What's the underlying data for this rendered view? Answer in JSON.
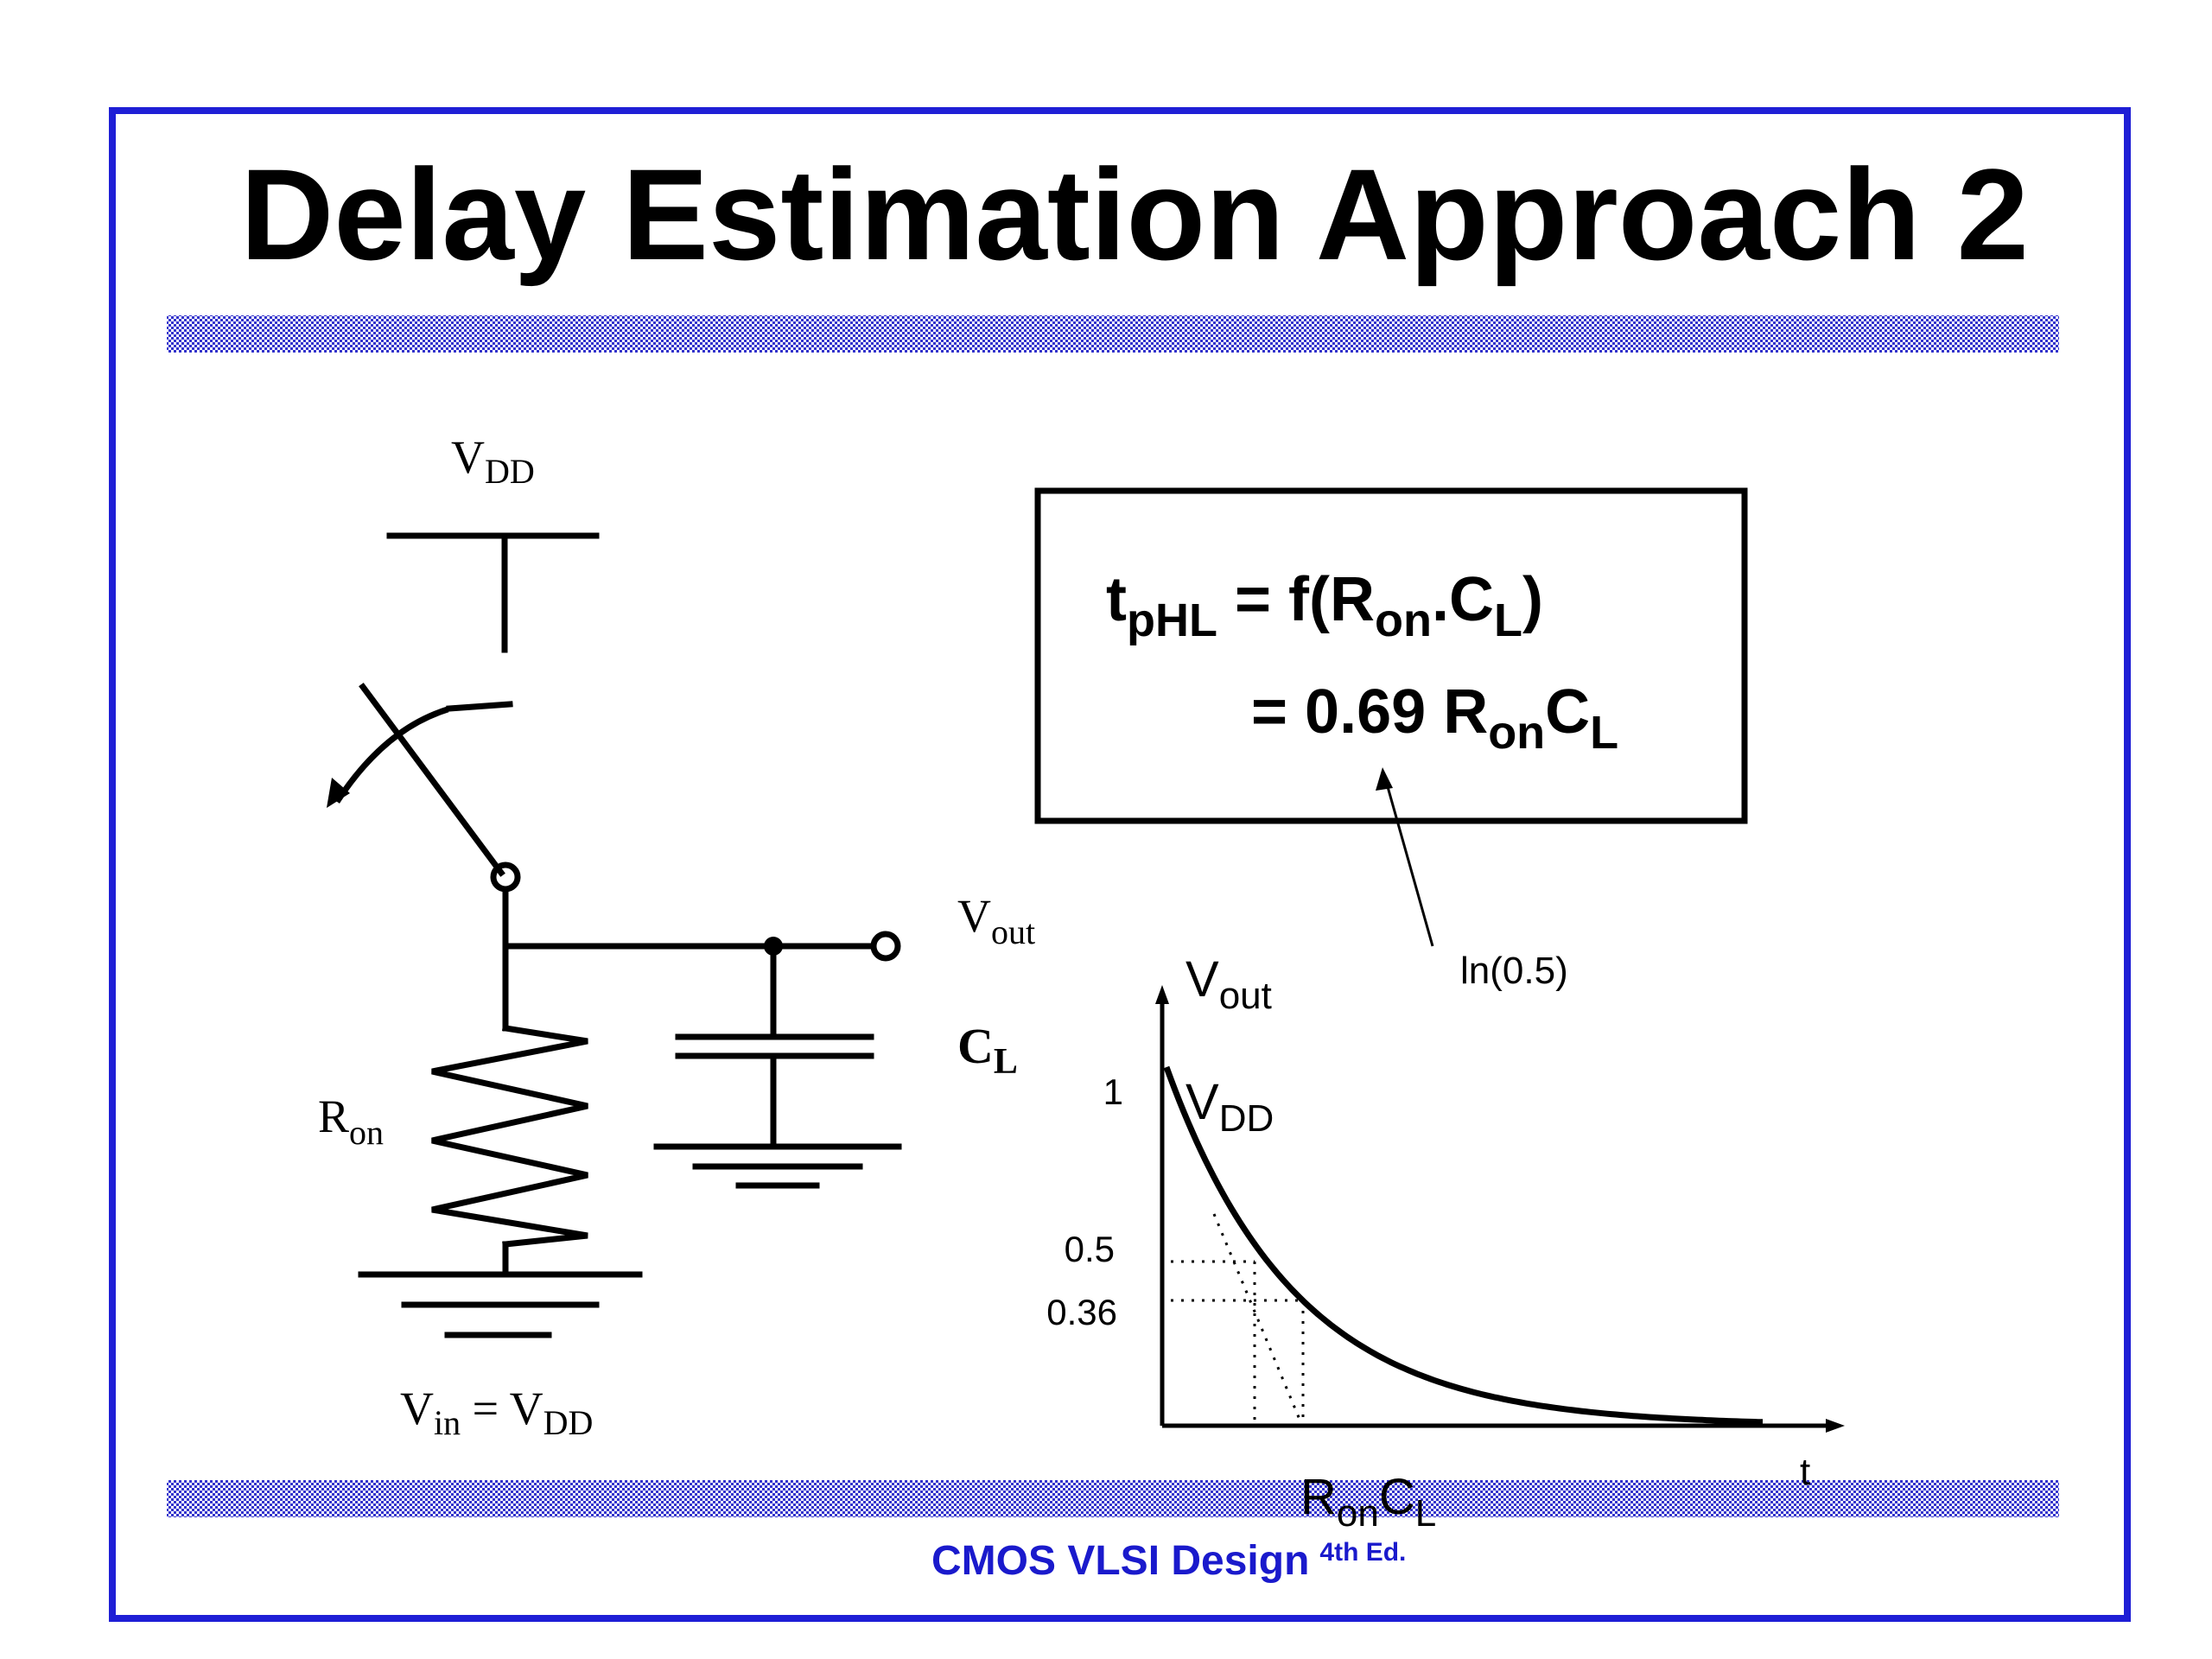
{
  "slide": {
    "title": "Delay Estimation Approach 2",
    "footer": {
      "main": "CMOS VLSI Design",
      "edition": "4th Ed."
    },
    "colors": {
      "frame": "#1f1fd6",
      "band": "#3333cc",
      "footer_text": "#1a1acc"
    }
  },
  "circuit": {
    "vdd": {
      "main": "V",
      "sub": "DD"
    },
    "vout": {
      "main": "V",
      "sub": "out"
    },
    "cl": {
      "main": "C",
      "sub": "L"
    },
    "ron": {
      "main": "R",
      "sub": "on"
    },
    "vin_eq": {
      "v": "V",
      "in": "in",
      "eq": " = V",
      "dd": "DD"
    }
  },
  "equation": {
    "line1": {
      "t": "t",
      "t_sub": "pHL",
      "mid": " = f(R",
      "on": "on",
      "dot": ".C",
      "l": "L",
      "close": ")"
    },
    "line2": {
      "eq": "= 0.69 R",
      "on": "on",
      "c": "C",
      "l": "L"
    }
  },
  "annotation": {
    "ln": "ln(0.5)"
  },
  "plot": {
    "ylabel": {
      "main": "V",
      "sub": "out"
    },
    "vdd_label": {
      "main": "V",
      "sub": "DD"
    },
    "xlabel": "t",
    "yticks": [
      "1",
      "0.5",
      "0.36"
    ],
    "ron_cl": {
      "r": "R",
      "on": "on",
      "c": "C",
      "l": "L"
    }
  }
}
